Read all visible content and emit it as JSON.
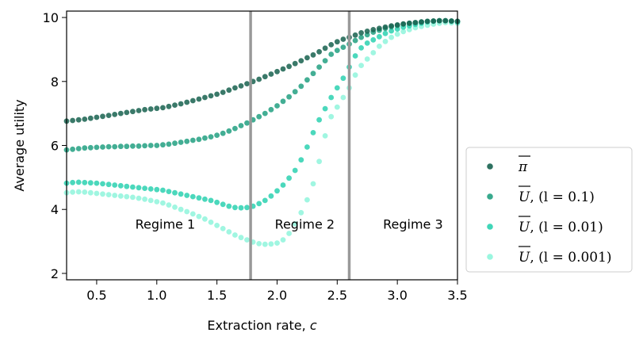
{
  "chart_data": {
    "type": "scatter",
    "title": "",
    "xlabel": "Extraction rate, c",
    "ylabel": "Average utility",
    "xlim": [
      0.25,
      3.5
    ],
    "ylim": [
      1.8,
      10.2
    ],
    "xticks": [
      0.5,
      1.0,
      1.5,
      2.0,
      2.5,
      3.0,
      3.5
    ],
    "xtick_labels": [
      "0.5",
      "1.0",
      "1.5",
      "2.0",
      "2.5",
      "3.0",
      "3.5"
    ],
    "yticks": [
      2,
      4,
      6,
      8,
      10
    ],
    "ytick_labels": [
      "2",
      "4",
      "6",
      "8",
      "10"
    ],
    "grid": false,
    "legend_position": "outside-right",
    "vlines": [
      1.78,
      2.6
    ],
    "vline_color": "#999999",
    "annotations": [
      {
        "text": "Regime 1",
        "x": 1.07,
        "y": 3.55
      },
      {
        "text": "Regime 2",
        "x": 2.23,
        "y": 3.55
      },
      {
        "text": "Regime 3",
        "x": 3.13,
        "y": 3.55
      }
    ],
    "x": [
      0.25,
      0.3,
      0.35,
      0.4,
      0.45,
      0.5,
      0.55,
      0.6,
      0.65,
      0.7,
      0.75,
      0.8,
      0.85,
      0.9,
      0.95,
      1.0,
      1.05,
      1.1,
      1.15,
      1.2,
      1.25,
      1.3,
      1.35,
      1.4,
      1.45,
      1.5,
      1.55,
      1.6,
      1.65,
      1.7,
      1.75,
      1.8,
      1.85,
      1.9,
      1.95,
      2.0,
      2.05,
      2.1,
      2.15,
      2.2,
      2.25,
      2.3,
      2.35,
      2.4,
      2.45,
      2.5,
      2.55,
      2.6,
      2.65,
      2.7,
      2.75,
      2.8,
      2.85,
      2.9,
      2.95,
      3.0,
      3.05,
      3.1,
      3.15,
      3.2,
      3.25,
      3.3,
      3.35,
      3.4,
      3.45,
      3.5
    ],
    "series": [
      {
        "name": "π̄",
        "color": "#17624f",
        "values": [
          6.76,
          6.78,
          6.8,
          6.82,
          6.85,
          6.88,
          6.91,
          6.94,
          6.97,
          7.0,
          7.03,
          7.06,
          7.09,
          7.12,
          7.14,
          7.16,
          7.18,
          7.22,
          7.26,
          7.3,
          7.35,
          7.4,
          7.45,
          7.5,
          7.55,
          7.6,
          7.66,
          7.73,
          7.8,
          7.86,
          7.93,
          8.0,
          8.07,
          8.15,
          8.23,
          8.31,
          8.39,
          8.47,
          8.56,
          8.65,
          8.74,
          8.83,
          8.93,
          9.04,
          9.15,
          9.24,
          9.32,
          9.38,
          9.45,
          9.52,
          9.57,
          9.62,
          9.66,
          9.7,
          9.74,
          9.77,
          9.8,
          9.82,
          9.84,
          9.86,
          9.88,
          9.89,
          9.9,
          9.9,
          9.89,
          9.88
        ]
      },
      {
        "name": "U, (l = 0.1)",
        "color": "#22a081",
        "values": [
          5.86,
          5.88,
          5.9,
          5.92,
          5.93,
          5.94,
          5.95,
          5.96,
          5.96,
          5.97,
          5.97,
          5.98,
          5.98,
          5.99,
          6.0,
          6.0,
          6.02,
          6.04,
          6.07,
          6.1,
          6.13,
          6.16,
          6.19,
          6.23,
          6.27,
          6.32,
          6.38,
          6.45,
          6.53,
          6.62,
          6.7,
          6.8,
          6.9,
          7.0,
          7.12,
          7.24,
          7.38,
          7.52,
          7.68,
          7.85,
          8.05,
          8.25,
          8.45,
          8.65,
          8.85,
          8.97,
          9.07,
          9.17,
          9.28,
          9.38,
          9.46,
          9.54,
          9.6,
          9.66,
          9.71,
          9.75,
          9.79,
          9.82,
          9.84,
          9.86,
          9.88,
          9.89,
          9.9,
          9.9,
          9.89,
          9.88
        ]
      },
      {
        "name": "U, (l = 0.01)",
        "color": "#2bd1b0",
        "values": [
          4.82,
          4.84,
          4.85,
          4.84,
          4.83,
          4.82,
          4.8,
          4.78,
          4.76,
          4.74,
          4.72,
          4.7,
          4.68,
          4.66,
          4.64,
          4.62,
          4.6,
          4.56,
          4.52,
          4.48,
          4.44,
          4.4,
          4.36,
          4.32,
          4.28,
          4.22,
          4.16,
          4.1,
          4.06,
          4.05,
          4.06,
          4.1,
          4.18,
          4.28,
          4.42,
          4.58,
          4.76,
          4.98,
          5.22,
          5.55,
          5.95,
          6.4,
          6.8,
          7.15,
          7.5,
          7.8,
          8.1,
          8.45,
          8.8,
          9.05,
          9.2,
          9.3,
          9.4,
          9.5,
          9.58,
          9.64,
          9.7,
          9.74,
          9.78,
          9.82,
          9.86,
          9.88,
          9.9,
          9.9,
          9.88,
          9.86
        ]
      },
      {
        "name": "U, (l = 0.001)",
        "color": "#8ff5dc",
        "values": [
          4.52,
          4.54,
          4.55,
          4.54,
          4.52,
          4.5,
          4.48,
          4.46,
          4.44,
          4.42,
          4.4,
          4.38,
          4.35,
          4.32,
          4.28,
          4.24,
          4.2,
          4.14,
          4.07,
          4.0,
          3.93,
          3.86,
          3.78,
          3.7,
          3.6,
          3.5,
          3.4,
          3.3,
          3.2,
          3.12,
          3.05,
          2.98,
          2.93,
          2.91,
          2.92,
          2.95,
          3.05,
          3.25,
          3.55,
          3.9,
          4.3,
          4.8,
          5.5,
          6.3,
          6.9,
          7.2,
          7.5,
          7.8,
          8.2,
          8.5,
          8.7,
          8.9,
          9.1,
          9.25,
          9.38,
          9.48,
          9.56,
          9.62,
          9.68,
          9.72,
          9.76,
          9.79,
          9.82,
          9.84,
          9.83,
          9.82
        ]
      }
    ],
    "legend": [
      {
        "base": "π",
        "suffix": ""
      },
      {
        "base": "U",
        "suffix": ", (l = 0.1)"
      },
      {
        "base": "U",
        "suffix": ", (l = 0.01)"
      },
      {
        "base": "U",
        "suffix": ", (l = 0.001)"
      }
    ]
  }
}
